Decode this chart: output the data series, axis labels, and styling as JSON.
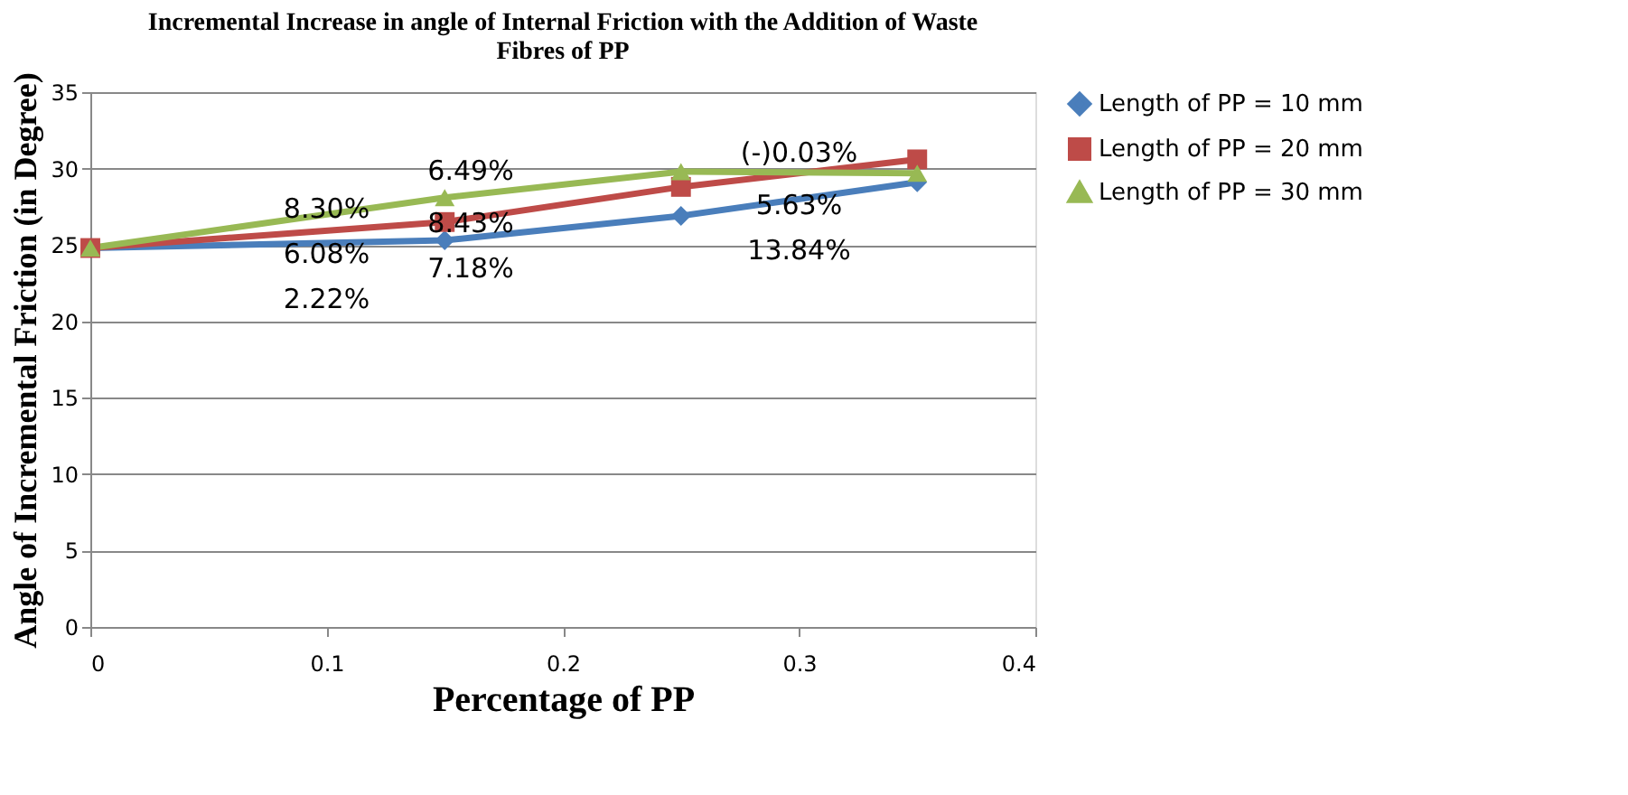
{
  "chart_data": {
    "type": "line",
    "title": [
      "Incremental Increase in angle of Internal Friction with the Addition of Waste",
      "Fibres of PP"
    ],
    "xlabel": "Percentage of PP",
    "ylabel": "Angle of Incremental Friction (in Degree)",
    "xlim": [
      0,
      0.4
    ],
    "xticks": [
      0,
      0.1,
      0.2,
      0.3,
      0.4
    ],
    "ylim": [
      0,
      35
    ],
    "yticks": [
      0,
      5,
      10,
      15,
      20,
      25,
      30,
      35
    ],
    "grid": "y",
    "legend": "right",
    "series": [
      {
        "name": "Length of PP = 10 mm",
        "color": "#4a7ebb",
        "marker": "diamond",
        "x": [
          0,
          0.15,
          0.25,
          0.35
        ],
        "values": [
          24.8,
          25.3,
          26.9,
          29.1
        ]
      },
      {
        "name": "Length of PP = 20 mm",
        "color": "#be4b48",
        "marker": "square",
        "x": [
          0,
          0.15,
          0.25,
          0.35
        ],
        "values": [
          24.8,
          26.5,
          28.8,
          30.6
        ]
      },
      {
        "name": "Length of PP = 30 mm",
        "color": "#98b954",
        "marker": "triangle",
        "x": [
          0,
          0.15,
          0.25,
          0.35
        ],
        "values": [
          24.8,
          28.1,
          29.8,
          29.7
        ]
      }
    ],
    "annotations": [
      {
        "text": "8.30%",
        "x": 0.1,
        "y": 27.4
      },
      {
        "text": "6.08%",
        "x": 0.1,
        "y": 24.4
      },
      "2.22%",
      "6.49%",
      {
        "text": "8.43%",
        "x": 0.161,
        "y": 26.4
      },
      "7.18%",
      "(-)0.03%",
      {
        "text": "5.63%",
        "x": 0.3,
        "y": 27.6
      },
      "13.84%"
    ]
  }
}
